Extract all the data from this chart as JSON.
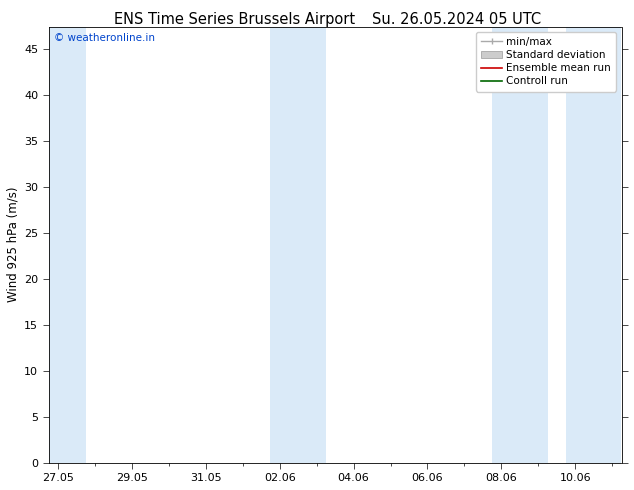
{
  "title_left": "ENS Time Series Brussels Airport",
  "title_right": "Su. 26.05.2024 05 UTC",
  "ylabel": "Wind 925 hPa (m/s)",
  "watermark": "© weatheronline.in",
  "watermark_color": "#0044cc",
  "ylim": [
    0,
    47.5
  ],
  "yticks": [
    0,
    5,
    10,
    15,
    20,
    25,
    30,
    35,
    40,
    45
  ],
  "background_color": "#ffffff",
  "plot_bg_color": "#ffffff",
  "shaded_band_color": "#daeaf8",
  "xtick_labels": [
    "27.05",
    "29.05",
    "31.05",
    "02.06",
    "04.06",
    "06.06",
    "08.06",
    "10.06"
  ],
  "xtick_positions": [
    0,
    4,
    8,
    12,
    16,
    20,
    24,
    28
  ],
  "xlim": [
    -0.5,
    30.5
  ],
  "shaded_bands": [
    [
      -0.5,
      1.5
    ],
    [
      11.5,
      14.5
    ],
    [
      23.5,
      26.5
    ],
    [
      27.5,
      30.5
    ]
  ],
  "legend_items": [
    {
      "label": "min/max",
      "color": "#aaaaaa",
      "type": "minmax"
    },
    {
      "label": "Standard deviation",
      "color": "#cccccc",
      "type": "fill"
    },
    {
      "label": "Ensemble mean run",
      "color": "#cc0000",
      "type": "line"
    },
    {
      "label": "Controll run",
      "color": "#006600",
      "type": "line"
    }
  ],
  "title_fontsize": 10.5,
  "axis_label_fontsize": 8.5,
  "tick_fontsize": 8,
  "legend_fontsize": 7.5
}
